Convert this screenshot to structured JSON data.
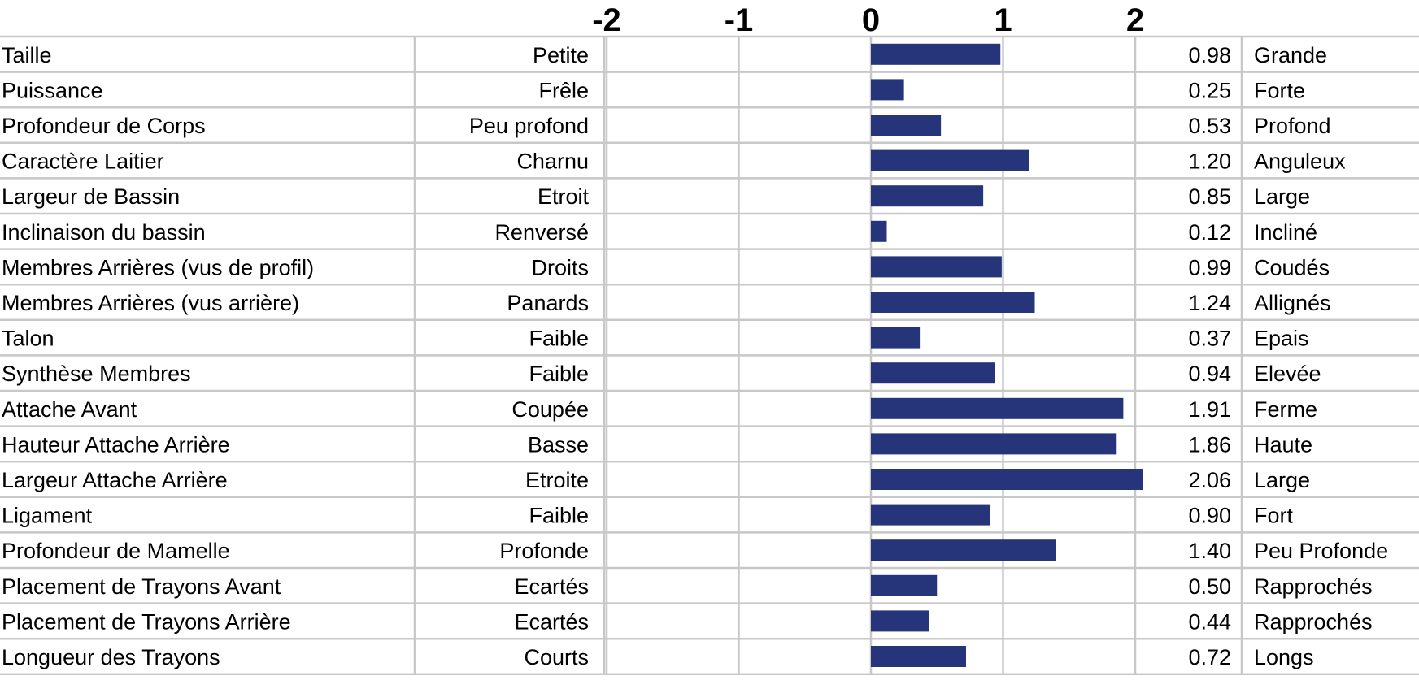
{
  "chart_data": {
    "type": "bar",
    "orientation": "horizontal",
    "xlim": [
      -2,
      2.1
    ],
    "ticks": [
      "-2",
      "-1",
      "0",
      "1",
      "2"
    ],
    "tick_values": [
      -2,
      -1,
      0,
      1,
      2
    ],
    "grid": true,
    "bar_color": "#26357a",
    "grid_color": "#c8c8c8",
    "rows": [
      {
        "trait": "Taille",
        "low": "Petite",
        "value": 0.98,
        "value_label": "0.98",
        "high": "Grande"
      },
      {
        "trait": "Puissance",
        "low": "Frêle",
        "value": 0.25,
        "value_label": "0.25",
        "high": "Forte"
      },
      {
        "trait": "Profondeur de Corps",
        "low": "Peu profond",
        "value": 0.53,
        "value_label": "0.53",
        "high": "Profond"
      },
      {
        "trait": "Caractère Laitier",
        "low": "Charnu",
        "value": 1.2,
        "value_label": "1.20",
        "high": "Anguleux"
      },
      {
        "trait": "Largeur de Bassin",
        "low": "Etroit",
        "value": 0.85,
        "value_label": "0.85",
        "high": "Large"
      },
      {
        "trait": "Inclinaison du bassin",
        "low": "Renversé",
        "value": 0.12,
        "value_label": "0.12",
        "high": "Incliné"
      },
      {
        "trait": "Membres Arrières (vus de profil)",
        "low": "Droits",
        "value": 0.99,
        "value_label": "0.99",
        "high": "Coudés"
      },
      {
        "trait": "Membres Arrières (vus arrière)",
        "low": "Panards",
        "value": 1.24,
        "value_label": "1.24",
        "high": "Allignés"
      },
      {
        "trait": "Talon",
        "low": "Faible",
        "value": 0.37,
        "value_label": "0.37",
        "high": "Epais"
      },
      {
        "trait": "Synthèse Membres",
        "low": "Faible",
        "value": 0.94,
        "value_label": "0.94",
        "high": "Elevée"
      },
      {
        "trait": "Attache Avant",
        "low": "Coupée",
        "value": 1.91,
        "value_label": "1.91",
        "high": "Ferme"
      },
      {
        "trait": "Hauteur Attache Arrière",
        "low": "Basse",
        "value": 1.86,
        "value_label": "1.86",
        "high": "Haute"
      },
      {
        "trait": "Largeur Attache Arrière",
        "low": "Etroite",
        "value": 2.06,
        "value_label": "2.06",
        "high": "Large"
      },
      {
        "trait": "Ligament",
        "low": "Faible",
        "value": 0.9,
        "value_label": "0.90",
        "high": "Fort"
      },
      {
        "trait": "Profondeur de Mamelle",
        "low": "Profonde",
        "value": 1.4,
        "value_label": "1.40",
        "high": "Peu Profonde"
      },
      {
        "trait": "Placement de Trayons Avant",
        "low": "Ecartés",
        "value": 0.5,
        "value_label": "0.50",
        "high": "Rapprochés"
      },
      {
        "trait": "Placement de Trayons Arrière",
        "low": "Ecartés",
        "value": 0.44,
        "value_label": "0.44",
        "high": "Rapprochés"
      },
      {
        "trait": "Longueur des Trayons",
        "low": "Courts",
        "value": 0.72,
        "value_label": "0.72",
        "high": "Longs"
      }
    ]
  }
}
